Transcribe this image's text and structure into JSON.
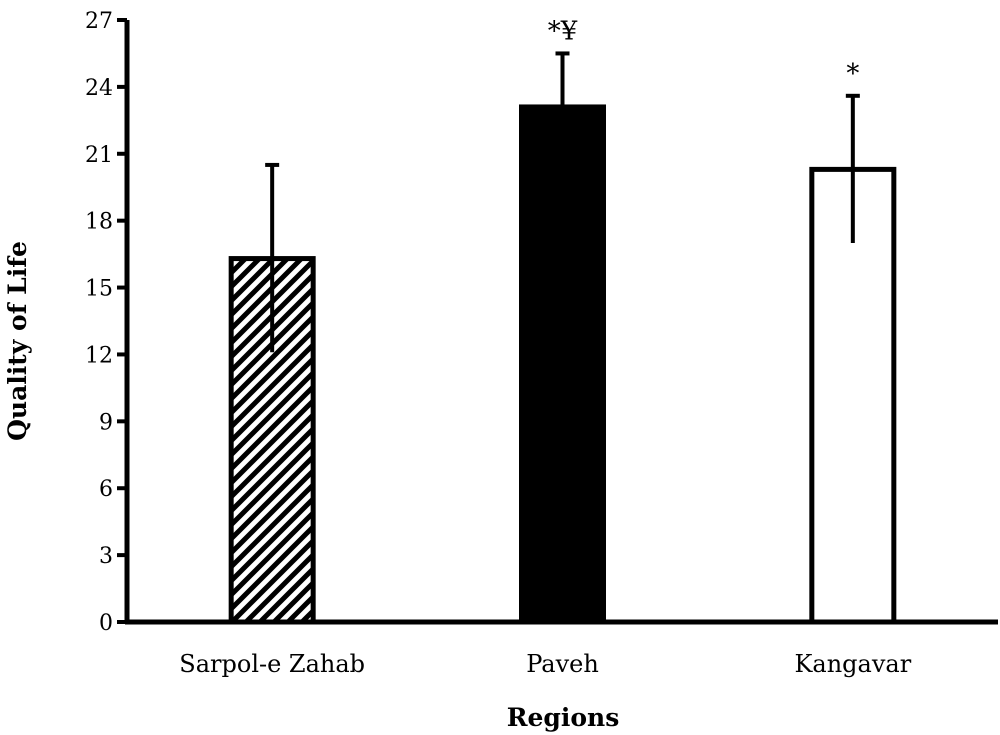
{
  "chart_data": {
    "type": "bar",
    "title": "",
    "xlabel": "Regions",
    "ylabel": "Quality of Life",
    "categories": [
      "Sarpol-e Zahab",
      "Paveh",
      "Kangavar"
    ],
    "values": [
      16.3,
      23.1,
      20.3
    ],
    "errors": [
      4.2,
      2.4,
      3.3
    ],
    "annotations": [
      "",
      "*¥",
      "*"
    ],
    "fills": [
      "hatched",
      "#000000",
      "#ffffff"
    ],
    "ylim": [
      0,
      27
    ],
    "yticks": [
      0,
      3,
      6,
      9,
      12,
      15,
      18,
      21,
      24,
      27
    ],
    "grid": false,
    "legend": "none"
  }
}
